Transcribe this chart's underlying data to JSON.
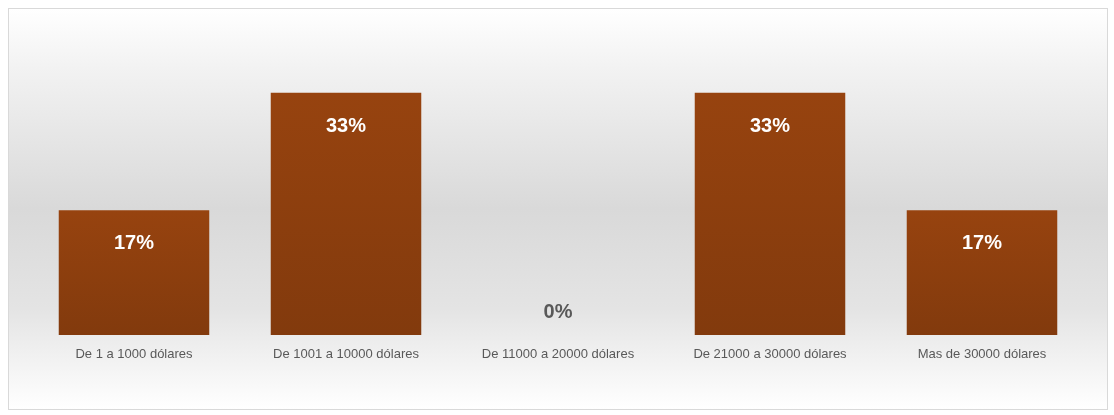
{
  "chart_data": {
    "type": "bar",
    "categories": [
      "De 1 a 1000 dólares",
      "De 1001 a 10000 dólares",
      "De 11000 a 20000 dólares",
      "De 21000 a 30000 dólares",
      "Mas de 30000 dólares"
    ],
    "values": [
      17,
      33,
      0,
      33,
      17
    ],
    "value_labels": [
      "17%",
      "33%",
      "0%",
      "33%",
      "17%"
    ],
    "color": "#97430f",
    "grid": false
  }
}
